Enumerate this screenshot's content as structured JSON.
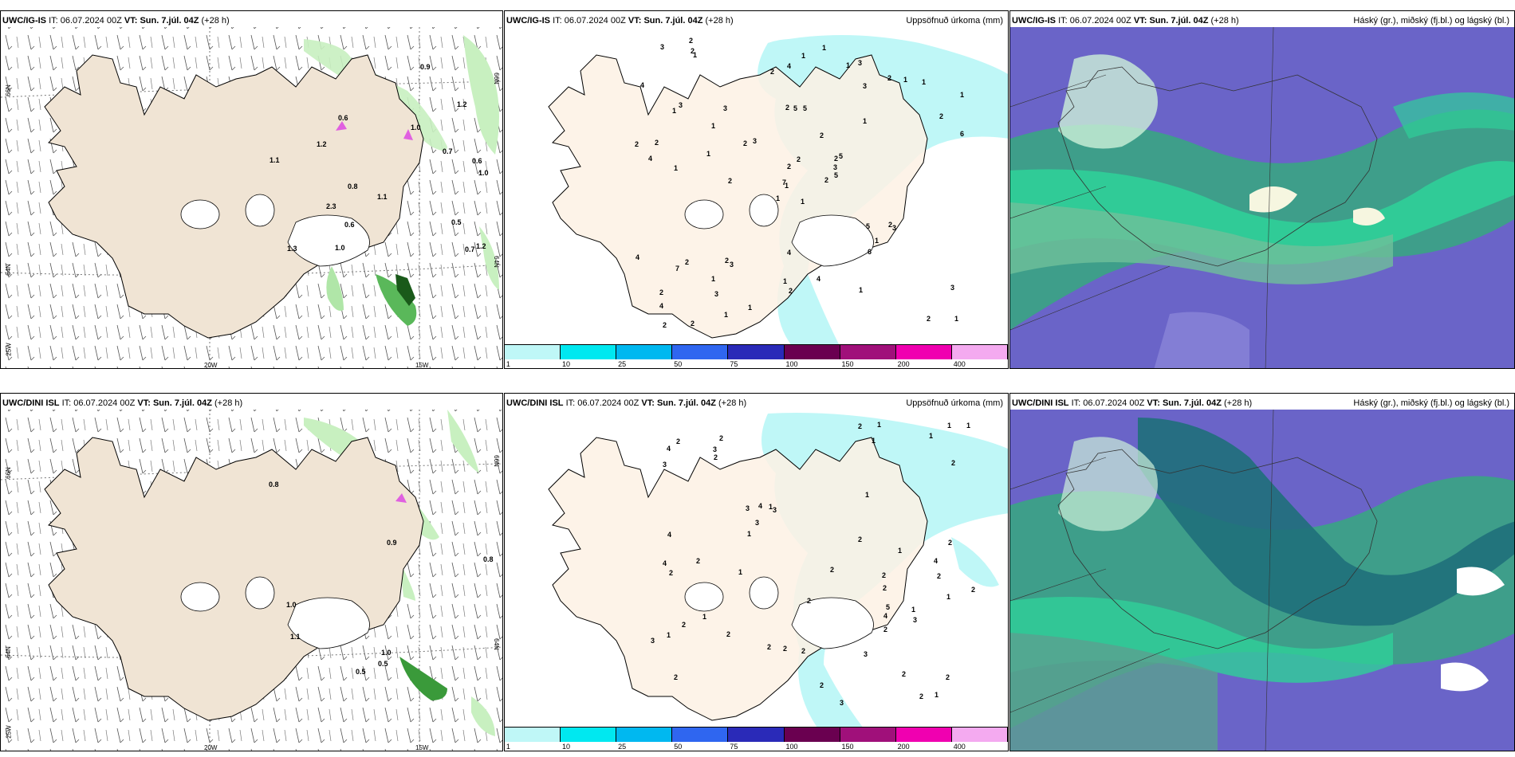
{
  "panels": [
    {
      "id": "top-left",
      "model": "UWC/IG-IS",
      "it_label": "IT:",
      "it_value": "06.07.2024 00Z",
      "vt_label": "VT:",
      "vt_value": "Sun. 7.júl. 04Z",
      "lead": "(+28 h)",
      "right_title": "",
      "ticks": [
        "66N",
        "64N",
        "25W",
        "20W",
        "15W",
        "66N",
        "64N"
      ],
      "values": [
        "0.6",
        "0.6",
        "1.0",
        "1.0",
        "0.8",
        "1.2",
        "0.6",
        "0.9",
        "0.7",
        "1.2",
        "1.2",
        "0.5",
        "0.7",
        "1.0",
        "1.3",
        "1.1",
        "2.3",
        "1.1"
      ]
    },
    {
      "id": "top-middle",
      "model": "UWC/IG-IS",
      "it_label": "IT:",
      "it_value": "06.07.2024 00Z",
      "vt_label": "VT:",
      "vt_value": "Sun. 7.júl. 04Z",
      "lead": "(+28 h)",
      "right_title": "Uppsöfnuð úrkoma (mm)"
    },
    {
      "id": "top-right",
      "model": "UWC/IG-IS",
      "it_label": "IT:",
      "it_value": "06.07.2024 00Z",
      "vt_label": "VT:",
      "vt_value": "Sun. 7.júl. 04Z",
      "lead": "(+28 h)",
      "right_title": "Háský (gr.), miðský (fj.bl.) og lágský (bl.)"
    },
    {
      "id": "bottom-left",
      "model": "UWC/DINI ISL",
      "it_label": "IT:",
      "it_value": "06.07.2024 00Z",
      "vt_label": "VT:",
      "vt_value": "Sun. 7.júl. 04Z",
      "lead": "(+28 h)",
      "right_title": "",
      "ticks": [
        "66N",
        "64N",
        "25W",
        "20W",
        "15W",
        "66N",
        "64N"
      ],
      "values": [
        "0.5",
        "1.0",
        "0.9",
        "0.8",
        "0.8",
        "1.1",
        "0.5",
        "1.0"
      ]
    },
    {
      "id": "bottom-middle",
      "model": "UWC/DINI ISL",
      "it_label": "IT:",
      "it_value": "06.07.2024 00Z",
      "vt_label": "VT:",
      "vt_value": "Sun. 7.júl. 04Z",
      "lead": "(+28 h)",
      "right_title": "Uppsöfnuð úrkoma (mm)"
    },
    {
      "id": "bottom-right",
      "model": "UWC/DINI ISL",
      "it_label": "IT:",
      "it_value": "06.07.2024 00Z",
      "vt_label": "VT:",
      "vt_value": "Sun. 7.júl. 04Z",
      "lead": "(+28 h)",
      "right_title": "Háský (gr.), miðský (fj.bl.) og lágský (bl.)"
    }
  ],
  "precip_legend": {
    "colors": [
      "#bff7f7",
      "#00e8f0",
      "#00b8f0",
      "#2f66f0",
      "#2a2ab8",
      "#6a0050",
      "#a0107a",
      "#f000b0",
      "#f4aaf0"
    ],
    "labels": [
      "1",
      "10",
      "25",
      "50",
      "75",
      "100",
      "150",
      "200",
      "400"
    ]
  },
  "precip_top_numbers": [
    "1",
    "1",
    "1",
    "2",
    "2",
    "3",
    "3",
    "5",
    "3",
    "2",
    "1",
    "1",
    "1",
    "1",
    "1",
    "1",
    "2",
    "2",
    "2",
    "2",
    "3",
    "4",
    "3",
    "5",
    "5",
    "3",
    "3",
    "4",
    "4",
    "5",
    "6",
    "7",
    "1",
    "2",
    "3",
    "2",
    "2",
    "2",
    "3",
    "2",
    "1",
    "2",
    "1",
    "6",
    "1",
    "2",
    "3",
    "2",
    "2",
    "5",
    "7",
    "2",
    "4",
    "1",
    "1",
    "1",
    "2",
    "3",
    "4",
    "1",
    "1",
    "2",
    "2",
    "1",
    "1",
    "2",
    "1",
    "2",
    "2",
    "4",
    "4",
    "1"
  ],
  "precip_bottom_numbers": [
    "2",
    "2",
    "2",
    "2",
    "3",
    "2",
    "1",
    "1",
    "3",
    "3",
    "3",
    "4",
    "4",
    "2",
    "2",
    "2",
    "2",
    "2",
    "1",
    "1",
    "1",
    "1",
    "1",
    "1",
    "2",
    "3",
    "5",
    "2",
    "2",
    "1",
    "2",
    "3",
    "3",
    "1",
    "4",
    "3",
    "4",
    "2",
    "2",
    "2",
    "2",
    "1",
    "1",
    "2",
    "1",
    "2",
    "3",
    "2",
    "2",
    "4",
    "2",
    "4",
    "1",
    "2",
    "2",
    "2",
    "1"
  ]
}
